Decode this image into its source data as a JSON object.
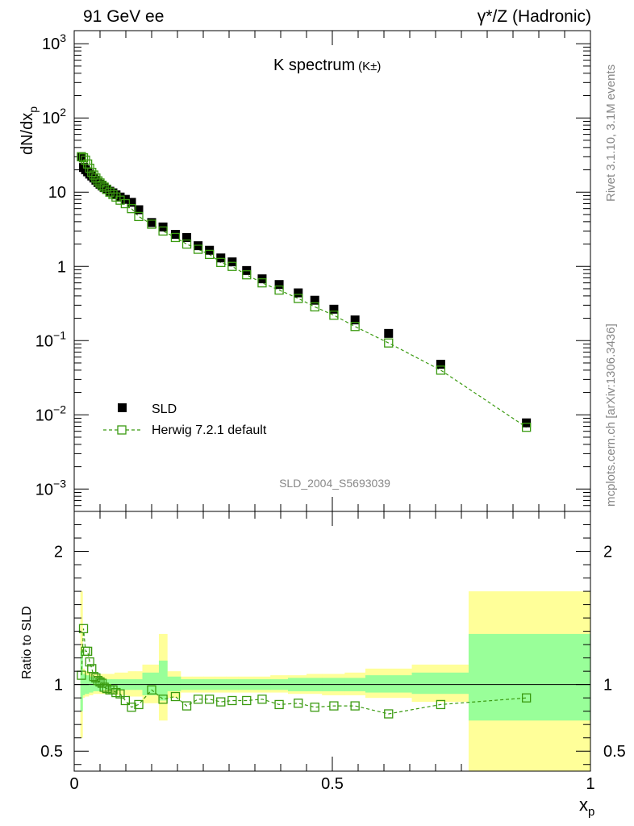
{
  "header": {
    "left": "91 GeV ee",
    "right": "γ*/Z (Hadronic)"
  },
  "side": {
    "rivet": "Rivet 3.1.10,  3.1M events",
    "mcplots": "mcplots.cern.ch [arXiv:1306.3436]"
  },
  "chart_data": {
    "type": "scatter",
    "title": "K spectrum",
    "title_suffix": "(K±)",
    "watermark": "SLD_2004_S5693039",
    "xlabel": "x",
    "xlabel_sub": "p",
    "ylabel": "dN/dx",
    "ylabel_sub": "p",
    "ratio_ylabel": "Ratio to SLD",
    "xlim": [
      0,
      1
    ],
    "ylim": [
      0.0005,
      1500
    ],
    "ratio_ylim": [
      0.35,
      2.3
    ],
    "y_scale": "log",
    "x_ticks": [
      "0",
      "0.5",
      "1"
    ],
    "y_ticks": [
      {
        "base": "10",
        "exp": "3",
        "value": 1000
      },
      {
        "base": "10",
        "exp": "2",
        "value": 100
      },
      {
        "base": "10",
        "exp": "",
        "value": 10
      },
      {
        "base": "1",
        "exp": "",
        "value": 1
      },
      {
        "base": "10",
        "exp": "−1",
        "value": 0.1
      },
      {
        "base": "10",
        "exp": "−2",
        "value": 0.01
      },
      {
        "base": "10",
        "exp": "−3",
        "value": 0.001
      }
    ],
    "ratio_ticks": [
      "2",
      "1",
      "0.5"
    ],
    "ratio_tick_values": [
      2,
      1,
      0.5
    ],
    "legend": [
      {
        "label": "SLD",
        "style": "filled-square",
        "color": "#000000"
      },
      {
        "label": "Herwig 7.2.1 default",
        "style": "open-square-dashed",
        "color": "#3a9a10"
      }
    ],
    "series": [
      {
        "name": "SLD",
        "x": [
          0.014,
          0.018,
          0.022,
          0.026,
          0.03,
          0.034,
          0.038,
          0.042,
          0.046,
          0.05,
          0.054,
          0.058,
          0.063,
          0.069,
          0.075,
          0.081,
          0.089,
          0.099,
          0.111,
          0.125,
          0.15,
          0.172,
          0.196,
          0.218,
          0.24,
          0.262,
          0.284,
          0.306,
          0.334,
          0.364,
          0.397,
          0.434,
          0.466,
          0.503,
          0.544,
          0.609,
          0.71,
          0.876
        ],
        "values": [
          30,
          21.5,
          20,
          18.8,
          17.5,
          16.5,
          15.5,
          14.5,
          13.5,
          12.8,
          12.1,
          11.5,
          11.0,
          10.3,
          9.8,
          9.2,
          8.6,
          8.0,
          7.3,
          5.8,
          3.9,
          3.4,
          2.7,
          2.45,
          1.9,
          1.65,
          1.3,
          1.15,
          0.88,
          0.68,
          0.57,
          0.44,
          0.35,
          0.265,
          0.19,
          0.125,
          0.048,
          0.0078
        ]
      },
      {
        "name": "Herwig 7.2.1 default",
        "x": [
          0.014,
          0.018,
          0.022,
          0.026,
          0.03,
          0.034,
          0.038,
          0.042,
          0.046,
          0.05,
          0.054,
          0.058,
          0.063,
          0.069,
          0.075,
          0.081,
          0.089,
          0.099,
          0.111,
          0.125,
          0.15,
          0.172,
          0.196,
          0.218,
          0.24,
          0.262,
          0.284,
          0.306,
          0.334,
          0.364,
          0.397,
          0.434,
          0.466,
          0.503,
          0.544,
          0.609,
          0.71,
          0.876
        ],
        "values": [
          30,
          29,
          27,
          24,
          21,
          18.5,
          17,
          15.5,
          14.2,
          13.3,
          12.4,
          11.7,
          10.9,
          10.0,
          9.3,
          8.6,
          7.8,
          7.0,
          6.0,
          4.7,
          3.7,
          3.0,
          2.45,
          2.0,
          1.7,
          1.45,
          1.13,
          1.0,
          0.77,
          0.6,
          0.48,
          0.37,
          0.285,
          0.22,
          0.155,
          0.093,
          0.04,
          0.0068
        ]
      }
    ],
    "ratio": {
      "x": [
        0.014,
        0.018,
        0.022,
        0.026,
        0.03,
        0.034,
        0.038,
        0.042,
        0.046,
        0.05,
        0.054,
        0.058,
        0.063,
        0.069,
        0.075,
        0.081,
        0.089,
        0.099,
        0.111,
        0.125,
        0.15,
        0.172,
        0.196,
        0.218,
        0.24,
        0.262,
        0.284,
        0.306,
        0.334,
        0.364,
        0.397,
        0.434,
        0.466,
        0.503,
        0.544,
        0.609,
        0.71,
        0.876
      ],
      "values": [
        1.07,
        1.42,
        1.25,
        1.25,
        1.17,
        1.12,
        1.06,
        1.05,
        1.03,
        1.02,
        1.01,
        0.98,
        0.97,
        0.96,
        0.96,
        0.94,
        0.93,
        0.88,
        0.83,
        0.85,
        0.96,
        0.89,
        0.91,
        0.84,
        0.89,
        0.89,
        0.87,
        0.88,
        0.88,
        0.89,
        0.85,
        0.86,
        0.83,
        0.84,
        0.84,
        0.78,
        0.85,
        0.9
      ]
    },
    "bands": {
      "x_edges": [
        0.012,
        0.016,
        0.02,
        0.024,
        0.028,
        0.032,
        0.036,
        0.04,
        0.044,
        0.048,
        0.052,
        0.056,
        0.06,
        0.066,
        0.072,
        0.078,
        0.084,
        0.094,
        0.104,
        0.118,
        0.132,
        0.164,
        0.18,
        0.206,
        0.228,
        0.25,
        0.272,
        0.294,
        0.318,
        0.348,
        0.38,
        0.414,
        0.45,
        0.48,
        0.524,
        0.564,
        0.654,
        0.764,
        1.0
      ],
      "stat_lo": [
        0.8,
        0.92,
        0.93,
        0.93,
        0.94,
        0.94,
        0.95,
        0.95,
        0.95,
        0.95,
        0.95,
        0.96,
        0.96,
        0.96,
        0.96,
        0.96,
        0.96,
        0.96,
        0.96,
        0.96,
        0.92,
        0.88,
        0.95,
        0.96,
        0.96,
        0.96,
        0.96,
        0.96,
        0.96,
        0.96,
        0.96,
        0.95,
        0.95,
        0.95,
        0.95,
        0.94,
        0.93,
        0.73
      ],
      "stat_hi": [
        1.25,
        1.08,
        1.07,
        1.07,
        1.06,
        1.06,
        1.05,
        1.05,
        1.05,
        1.05,
        1.05,
        1.04,
        1.04,
        1.04,
        1.04,
        1.04,
        1.04,
        1.04,
        1.04,
        1.04,
        1.09,
        1.18,
        1.06,
        1.04,
        1.04,
        1.04,
        1.04,
        1.04,
        1.04,
        1.04,
        1.04,
        1.05,
        1.05,
        1.05,
        1.05,
        1.07,
        1.09,
        1.38
      ],
      "tot_lo": [
        0.6,
        0.9,
        0.91,
        0.91,
        0.92,
        0.92,
        0.93,
        0.93,
        0.93,
        0.93,
        0.93,
        0.93,
        0.93,
        0.93,
        0.93,
        0.92,
        0.92,
        0.92,
        0.91,
        0.91,
        0.86,
        0.73,
        0.9,
        0.94,
        0.94,
        0.94,
        0.94,
        0.94,
        0.94,
        0.94,
        0.94,
        0.93,
        0.93,
        0.92,
        0.92,
        0.9,
        0.87,
        0.3
      ],
      "tot_hi": [
        1.7,
        1.12,
        1.1,
        1.1,
        1.09,
        1.09,
        1.08,
        1.08,
        1.08,
        1.08,
        1.08,
        1.08,
        1.08,
        1.08,
        1.08,
        1.09,
        1.09,
        1.09,
        1.1,
        1.1,
        1.15,
        1.38,
        1.1,
        1.06,
        1.06,
        1.06,
        1.06,
        1.06,
        1.06,
        1.06,
        1.07,
        1.07,
        1.08,
        1.08,
        1.09,
        1.12,
        1.15,
        1.7
      ]
    },
    "colors": {
      "data": "#000000",
      "mc": "#3a9a10",
      "stat_band": "#99ff99",
      "total_band": "#ffff99"
    }
  }
}
